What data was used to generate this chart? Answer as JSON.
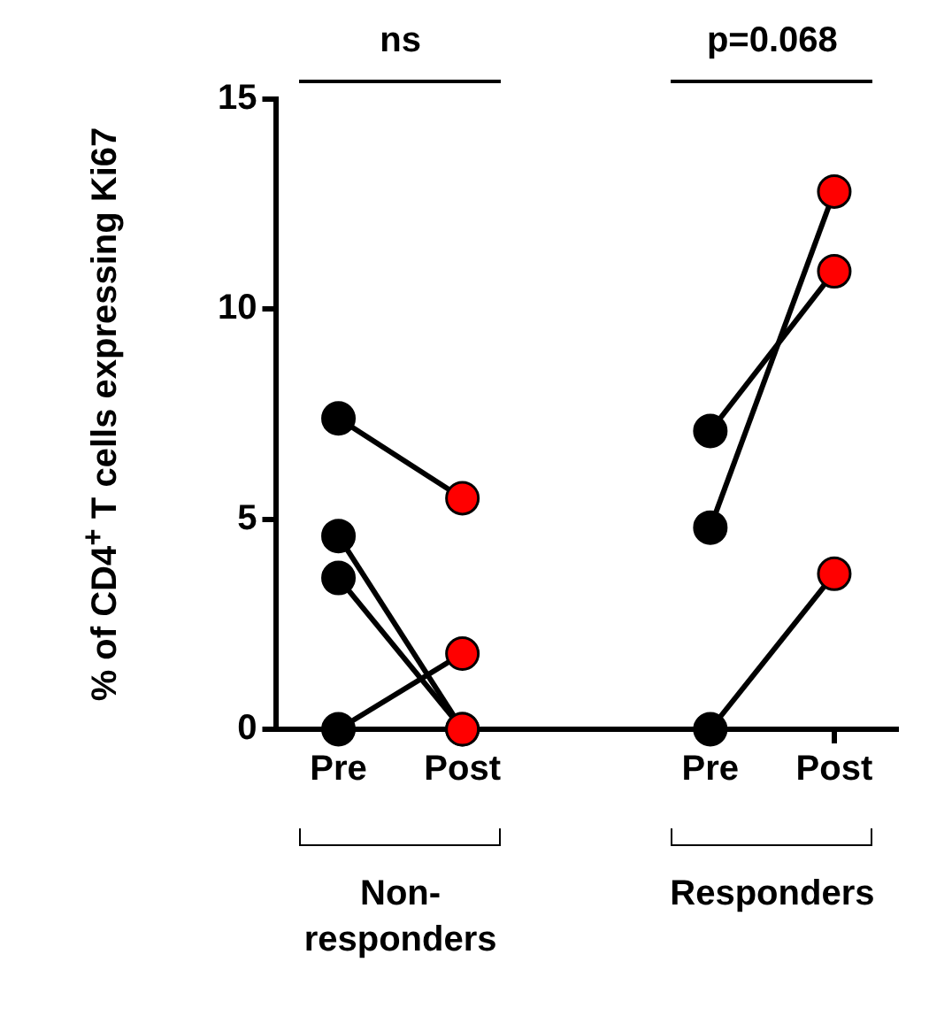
{
  "chart_data": {
    "type": "line",
    "ylabel": "% of CD4$^{+}$ T cells expressing Ki67",
    "categories": [
      "Pre",
      "Post",
      null,
      "Pre",
      "Post"
    ],
    "ylim": [
      0,
      15
    ],
    "yticks": [
      0,
      5,
      10,
      15
    ],
    "grid": false,
    "legend": false,
    "marker": "circle",
    "line_style": "solid",
    "series": [
      {
        "color": "#000000",
        "colors": [
          "#000000",
          "#ff0000",
          null,
          null,
          null
        ],
        "values": [
          7.4,
          5.5,
          null,
          null,
          null
        ]
      },
      {
        "color": "#000000",
        "colors": [
          "#000000",
          "#ff0000",
          null,
          null,
          null
        ],
        "values": [
          4.6,
          0,
          null,
          null,
          null
        ]
      },
      {
        "color": "#000000",
        "colors": [
          "#000000",
          "#ff0000",
          null,
          null,
          null
        ],
        "values": [
          3.6,
          0,
          null,
          null,
          null
        ]
      },
      {
        "color": "#000000",
        "colors": [
          "#000000",
          "#ff0000",
          null,
          null,
          null
        ],
        "values": [
          0,
          1.8,
          null,
          null,
          null
        ]
      },
      {
        "color": "#000000",
        "colors": [
          null,
          null,
          null,
          "#000000",
          "#ff0000"
        ],
        "values": [
          null,
          null,
          null,
          7.1,
          10.9
        ]
      },
      {
        "color": "#000000",
        "colors": [
          null,
          null,
          null,
          "#000000",
          "#ff0000"
        ],
        "values": [
          null,
          null,
          null,
          4.8,
          12.8
        ]
      },
      {
        "color": "#000000",
        "colors": [
          null,
          null,
          null,
          "#000000",
          "#ff0000"
        ],
        "values": [
          null,
          null,
          null,
          0,
          3.7
        ]
      }
    ],
    "annotations": [
      "ns",
      "p=0.068",
      "Non-responders",
      "Responders"
    ]
  }
}
